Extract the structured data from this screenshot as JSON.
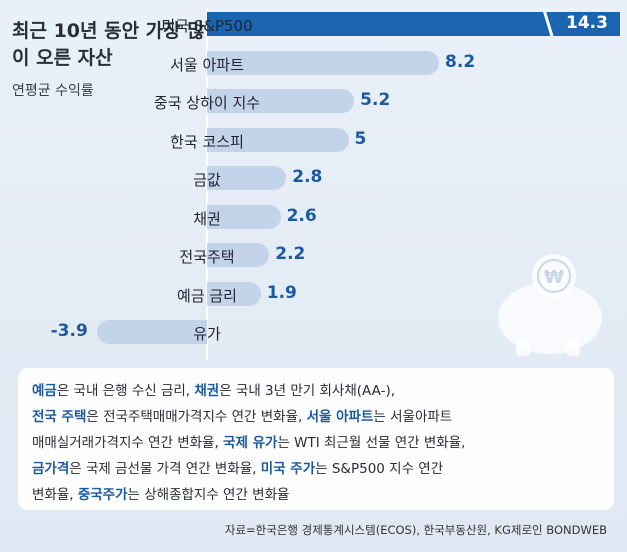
{
  "header": {
    "title": "최근 10년 동안 가장 많이 오른 자산",
    "subtitle": "연평균 수익률"
  },
  "chart_data": {
    "type": "bar",
    "orientation": "horizontal",
    "categories": [
      "미국 S&P500",
      "서울 아파트",
      "중국 상하이 지수",
      "한국 코스피",
      "금값",
      "채권",
      "전국주택",
      "예금 금리",
      "유가"
    ],
    "values": [
      14.3,
      8.2,
      5.2,
      5,
      2.8,
      2.6,
      2.2,
      1.9,
      -3.9
    ],
    "value_labels": [
      "14.3",
      "8.2",
      "5.2",
      "5",
      "2.8",
      "2.6",
      "2.2",
      "1.9",
      "-3.9"
    ],
    "title": "최근 10년 동안 가장 많이 오른 자산",
    "subtitle": "연평균 수익률",
    "highlight_color": "#1b64b0",
    "bar_color": "#c3d3ea"
  },
  "notes": {
    "segments": [
      {
        "t": "예금",
        "b": true
      },
      {
        "t": "은 국내 은행 수신 금리, ",
        "b": false
      },
      {
        "t": "채권",
        "b": true
      },
      {
        "t": "은 국내 3년 만기 회사채(AA-),",
        "b": false
      },
      {
        "t": "\n",
        "b": false
      },
      {
        "t": "전국 주택",
        "b": true
      },
      {
        "t": "은 전국주택매매가격지수 연간 변화율, ",
        "b": false
      },
      {
        "t": "서울 아파트",
        "b": true
      },
      {
        "t": "는 서울아파트",
        "b": false
      },
      {
        "t": "\n",
        "b": false
      },
      {
        "t": "매매실거래가격지수 연간 변화율, ",
        "b": false
      },
      {
        "t": "국제 유가",
        "b": true
      },
      {
        "t": "는 WTI 최근월 선물 연간 변화율,",
        "b": false
      },
      {
        "t": "\n",
        "b": false
      },
      {
        "t": "금가격",
        "b": true
      },
      {
        "t": "은 국제 금선물 가격 연간 변화율, ",
        "b": false
      },
      {
        "t": "미국 주가",
        "b": true
      },
      {
        "t": "는 S&P500 지수 연간",
        "b": false
      },
      {
        "t": "\n",
        "b": false
      },
      {
        "t": "변화율, ",
        "b": false
      },
      {
        "t": "중국주가",
        "b": true
      },
      {
        "t": "는 상해종합지수 연간 변화율",
        "b": false
      }
    ]
  },
  "source": "자료=한국은행 경제통계시스템(ECOS), 한국부동산원, KG제로인 BONDWEB",
  "icons": {
    "piggy": "piggy-bank-icon",
    "coin_symbol": "₩"
  }
}
